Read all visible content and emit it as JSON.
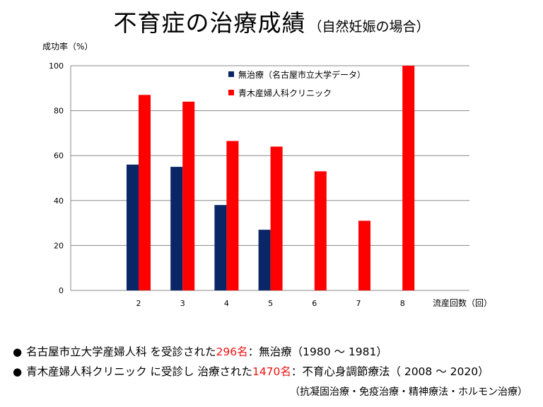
{
  "title": {
    "main": "不育症の治療成績",
    "sub": "（自然妊娠の場合）"
  },
  "colors": {
    "series1": "#0a2666",
    "series2": "#ff0000",
    "grid": "#888888",
    "highlight": "#e11111"
  },
  "chart_data": {
    "type": "bar",
    "ylabel": "成功率（%）",
    "xlabel": "流産回数（回）",
    "ylim": [
      0,
      100
    ],
    "yticks": [
      0,
      20,
      40,
      60,
      80,
      100
    ],
    "categories": [
      "2",
      "3",
      "4",
      "5",
      "6",
      "7",
      "8"
    ],
    "grid": true,
    "legend_position": "top-center",
    "series": [
      {
        "name": "無治療（名古屋市立大学データ）",
        "color": "#0a2666",
        "values": [
          56,
          55,
          38,
          27,
          null,
          null,
          null
        ]
      },
      {
        "name": "青木産婦人科クリニック",
        "color": "#ff0000",
        "values": [
          87,
          84,
          66.5,
          64,
          53,
          31,
          100
        ]
      }
    ]
  },
  "notes": {
    "bullet": "●",
    "line1": {
      "pre": "名古屋市立大学産婦人科 を受診された",
      "count": "296名",
      "post": "：無治療（1980 ～ 1981）"
    },
    "line2": {
      "pre": "青木産婦人科クリニック に受診し 治療された",
      "count": "1470名",
      "post": "：不育心身調節療法（ 2008 ～ 2020）"
    },
    "line3": "（抗凝固治療・免疫治療・精神療法・ホルモン治療）"
  }
}
